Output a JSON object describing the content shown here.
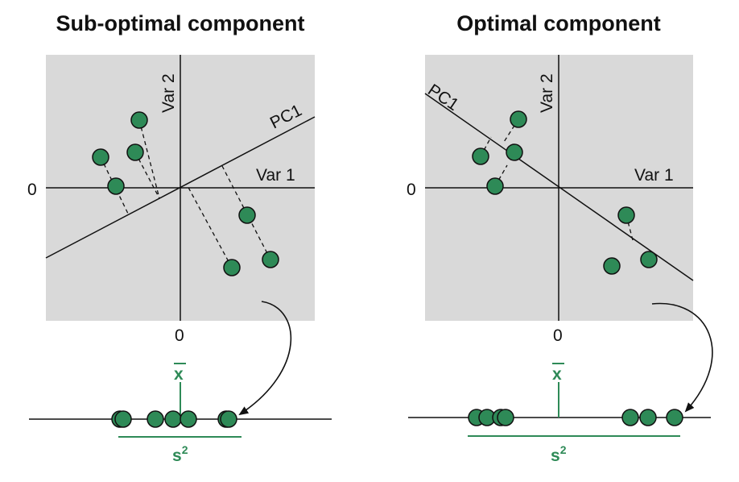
{
  "panels": [
    {
      "title": "Sub-optimal component",
      "axis_var1": "Var 1",
      "axis_var2": "Var 2",
      "pc_label": "PC1",
      "zero_x": "0",
      "zero_y": "0",
      "mean_label": "x",
      "variance_label": "s",
      "variance_exp": "2"
    },
    {
      "title": "Optimal component",
      "axis_var1": "Var 1",
      "axis_var2": "Var 2",
      "pc_label": "PC1",
      "zero_x": "0",
      "zero_y": "0",
      "mean_label": "x",
      "variance_label": "s",
      "variance_exp": "2"
    }
  ],
  "colors": {
    "plot_background": "#d9d9d9",
    "point_fill": "#2e8a57",
    "mean_variance_color": "#2e8a57",
    "axis_color": "#111111"
  }
}
